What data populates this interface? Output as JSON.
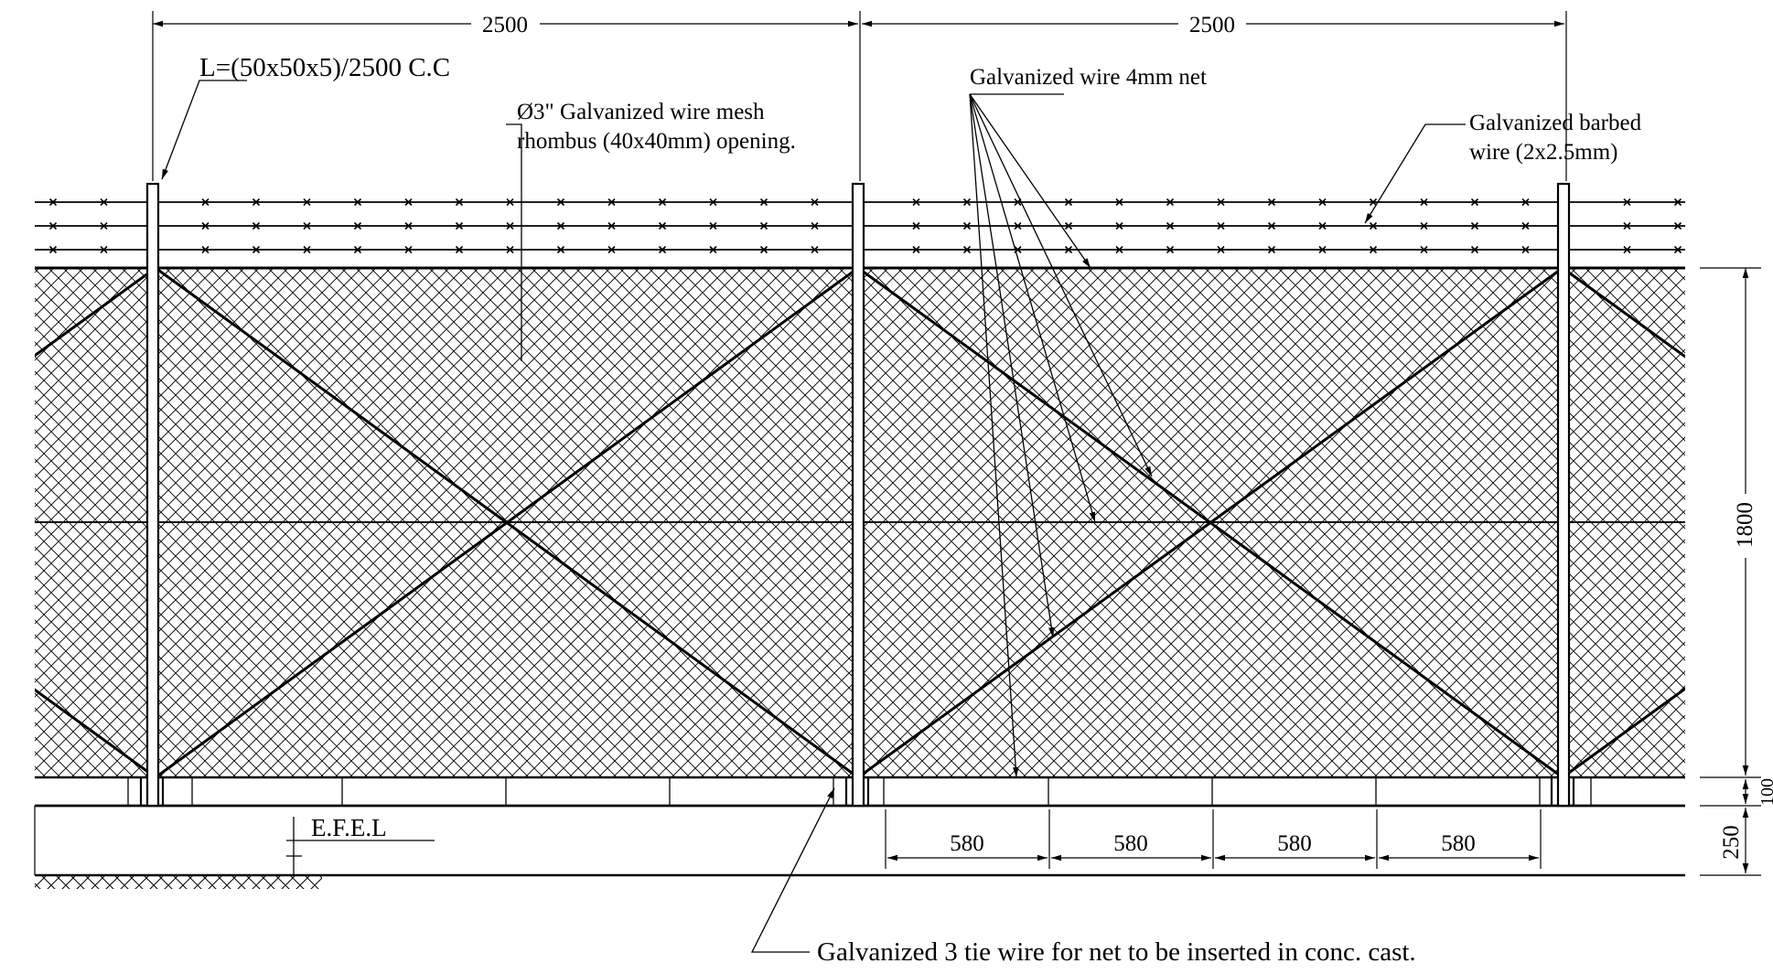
{
  "dimensions": {
    "span_left": "2500",
    "span_right": "2500",
    "height_mesh": "1800",
    "height_base": "250",
    "height_gap": "100",
    "tie_spacing_1": "580",
    "tie_spacing_2": "580",
    "tie_spacing_3": "580",
    "tie_spacing_4": "580"
  },
  "labels": {
    "post_spec": "L=(50x50x5)/2500 C.C",
    "mesh_line1": "Ø3\" Galvanized wire mesh",
    "mesh_line2": "rhombus (40x40mm) opening.",
    "net_wire": "Galvanized wire 4mm net",
    "barbed_line1": "Galvanized barbed",
    "barbed_line2": "wire (2x2.5mm)",
    "efel": "E.F.E.L",
    "tie_wire": "Galvanized 3 tie wire for net to be inserted in conc. cast."
  },
  "colors": {
    "ink": "#000000",
    "paper": "#ffffff"
  }
}
